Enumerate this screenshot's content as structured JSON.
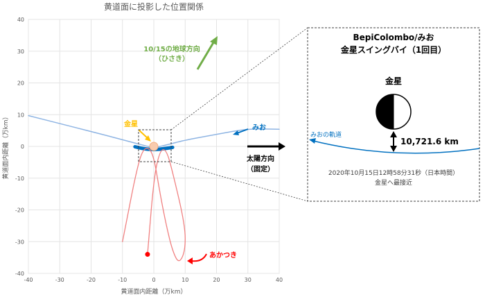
{
  "chart_data": {
    "type": "line",
    "title": "黄道面に投影した位置関係",
    "xlabel": "黄道面内距離（万km）",
    "ylabel": "黄道面内距離（万km）",
    "xlim": [
      -40,
      40
    ],
    "ylim": [
      -40,
      40
    ],
    "x_ticks": [
      "-40",
      "-30",
      "-20",
      "-10",
      "0",
      "10",
      "20",
      "30",
      "40"
    ],
    "y_ticks": [
      "40",
      "30",
      "20",
      "10",
      "0",
      "-10",
      "-20",
      "-30",
      "-40"
    ],
    "grid": true,
    "series": [
      {
        "name": "みお",
        "color": "#8EB4E3",
        "x": [
          -40,
          -30,
          -20,
          -10,
          -5,
          0,
          5,
          10,
          20,
          30,
          40
        ],
        "y": [
          9.7,
          7.2,
          4.7,
          2.1,
          0.8,
          -0.5,
          0.7,
          2.0,
          3.8,
          5.6,
          5.4
        ]
      },
      {
        "name": "みお（強調）",
        "color": "#0070C0",
        "x": [
          -6,
          -4,
          -2,
          0,
          2,
          4,
          6
        ],
        "y": [
          -0.1,
          -0.6,
          -0.9,
          -1.0,
          -0.9,
          -0.6,
          -0.3
        ]
      },
      {
        "name": "あかつき",
        "color": "#F08080",
        "x": [
          -10,
          -8,
          -6,
          -4,
          -2,
          0,
          2,
          4,
          6,
          8,
          10,
          10,
          6,
          4,
          2,
          0,
          -2
        ],
        "y": [
          -30,
          -20,
          -10,
          -2,
          0,
          -3,
          -15,
          -25,
          -33,
          -37,
          -33,
          -25,
          -8,
          -1,
          -1,
          -10,
          -34
        ]
      }
    ],
    "annotations": {
      "earth": {
        "label_line1": "10/15の地球方向",
        "label_line2": "（ひさき）",
        "color": "#70AD47"
      },
      "venus_label": {
        "text": "金星",
        "color": "#FFC000"
      },
      "mio_label": {
        "text": "みお",
        "color": "#0070C0"
      },
      "akatsuki_label": {
        "text": "あかつき",
        "color": "#FF0000"
      },
      "sun": {
        "line1": "太陽方向",
        "line2": "（固定）"
      }
    }
  },
  "inset": {
    "title_line1": "BepiColombo/みお",
    "title_line2": "金星スイングバイ（1回目）",
    "planet_label": "金星",
    "orbit_label": "みおの軌道",
    "distance": "10,721.6 km",
    "date_line1": "2020年10月15日12時58分31秒（日本時間）",
    "date_line2": "金星へ最接近",
    "colors": {
      "orbit": "#0070C0",
      "planet": "#000000"
    }
  }
}
